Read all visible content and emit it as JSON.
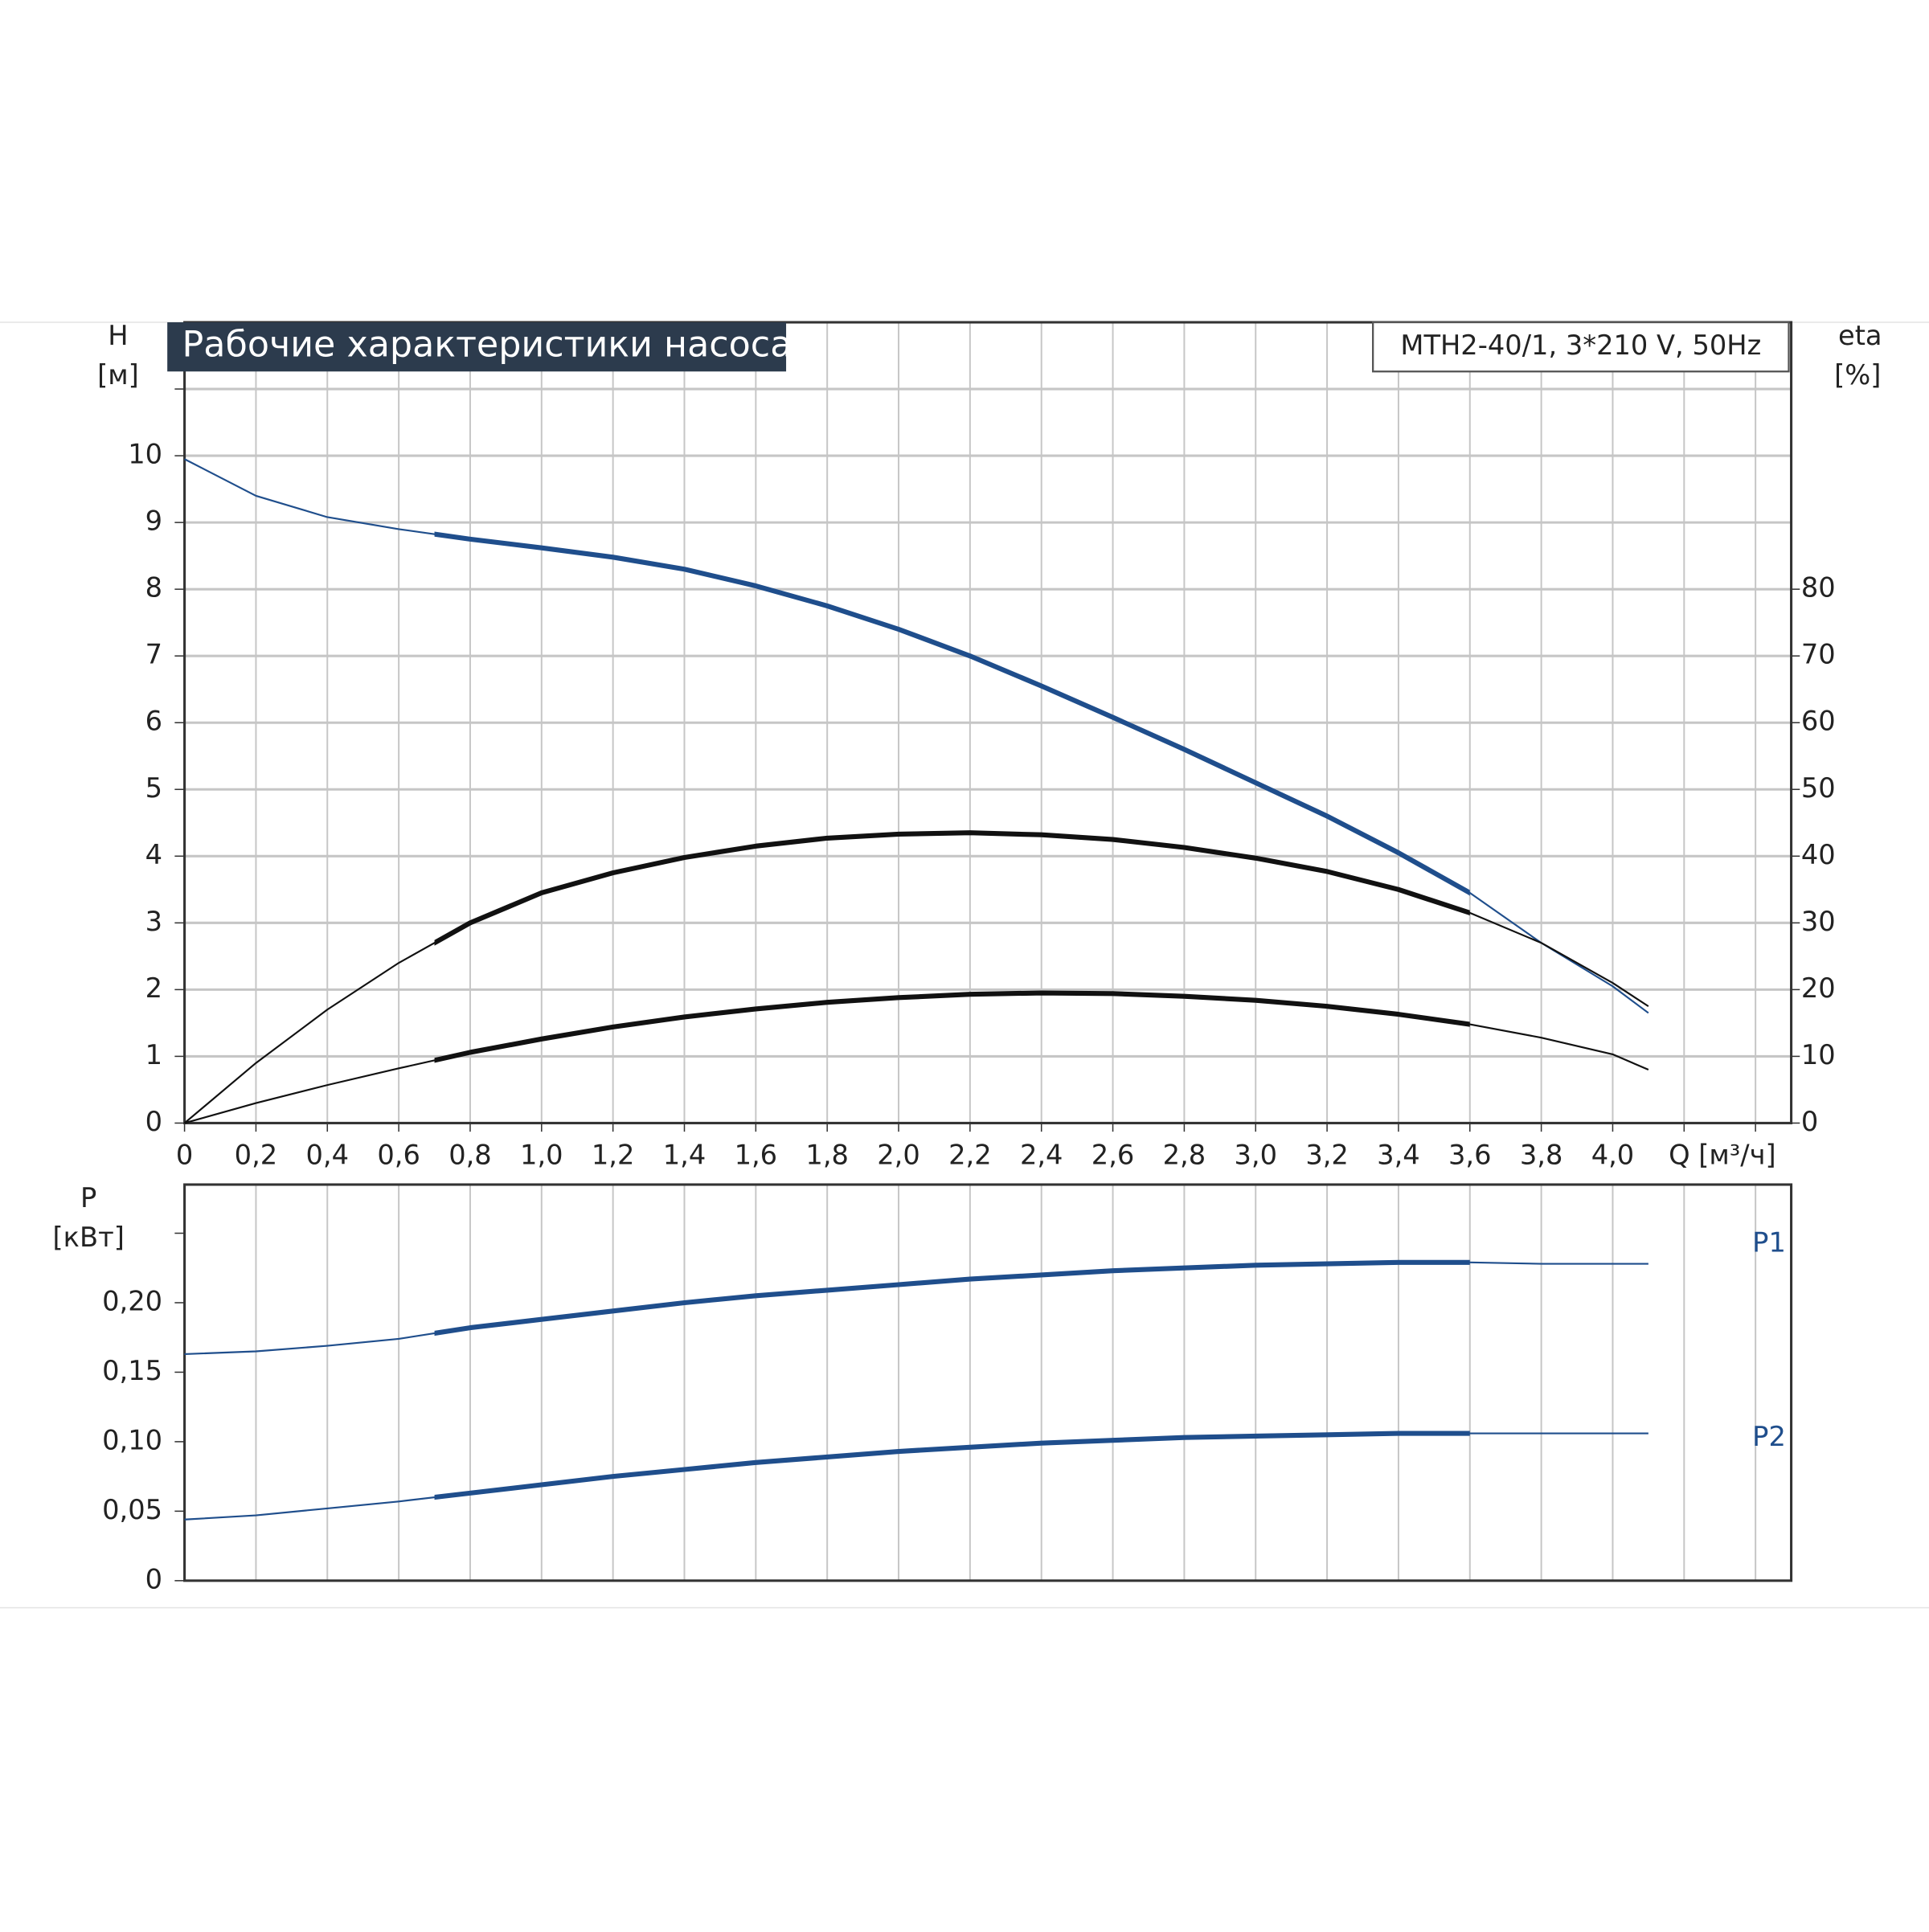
{
  "chart_data": [
    {
      "type": "line",
      "title": "Рабочие характеристики насоса",
      "model": "MTH2-40/1, 3*210 V, 50Hz",
      "ylabel": "H",
      "yunit": "[м]",
      "y2label": "eta",
      "y2unit": "[%]",
      "xlabel": "Q [м³/ч]",
      "x": [
        0,
        0.2,
        0.4,
        0.6,
        0.8,
        1.0,
        1.2,
        1.4,
        1.6,
        1.8,
        2.0,
        2.2,
        2.4,
        2.6,
        2.8,
        3.0,
        3.2,
        3.4,
        3.6,
        3.8,
        4.0,
        4.1
      ],
      "xlim": [
        0,
        4.5
      ],
      "xticks": [
        0,
        {
          "value": 0.2,
          "label": "0,2"
        },
        {
          "value": 0.4,
          "label": "0,4"
        },
        {
          "value": 0.6,
          "label": "0,6"
        },
        {
          "value": 0.8,
          "label": "0,8"
        },
        {
          "value": 1.0,
          "label": "1,0"
        },
        {
          "value": 1.2,
          "label": "1,2"
        },
        {
          "value": 1.4,
          "label": "1,4"
        },
        {
          "value": 1.6,
          "label": "1,6"
        },
        {
          "value": 1.8,
          "label": "1,8"
        },
        {
          "value": 2.0,
          "label": "2,0"
        },
        {
          "value": 2.2,
          "label": "2,2"
        },
        {
          "value": 2.4,
          "label": "2,4"
        },
        {
          "value": 2.6,
          "label": "2,6"
        },
        {
          "value": 2.8,
          "label": "2,8"
        },
        {
          "value": 3.0,
          "label": "3,0"
        },
        {
          "value": 3.2,
          "label": "3,2"
        },
        {
          "value": 3.4,
          "label": "3,4"
        },
        {
          "value": 3.6,
          "label": "3,6"
        },
        {
          "value": 3.8,
          "label": "3,8"
        },
        {
          "value": 4.0,
          "label": "4,0"
        }
      ],
      "xminor": [
        4.2,
        4.4
      ],
      "ylim": [
        0,
        12
      ],
      "yticks": [
        0,
        1,
        2,
        3,
        4,
        5,
        6,
        7,
        8,
        9,
        10
      ],
      "yminor": [
        11
      ],
      "y2lim": [
        0,
        120
      ],
      "y2ticks": [
        0,
        10,
        20,
        30,
        40,
        50,
        60,
        70,
        80
      ],
      "grid": true,
      "highlight_x": [
        0.7,
        3.6
      ],
      "series": [
        {
          "color": "#1f4e8c",
          "values": [
            9.95,
            9.4,
            9.08,
            8.9,
            8.75,
            8.62,
            8.48,
            8.3,
            8.05,
            7.75,
            7.4,
            7.0,
            6.55,
            6.08,
            5.6,
            5.1,
            4.6,
            4.05,
            3.45,
            2.7,
            2.05,
            1.65
          ]
        },
        {
          "color": "#111111",
          "axis": "y2",
          "values": [
            0,
            9,
            17,
            24,
            30,
            34.5,
            37.5,
            39.8,
            41.5,
            42.7,
            43.3,
            43.5,
            43.2,
            42.5,
            41.3,
            39.7,
            37.7,
            35,
            31.5,
            27,
            21,
            17.5
          ]
        },
        {
          "color": "#111111",
          "axis": "y2",
          "values": [
            0,
            3,
            5.7,
            8.2,
            10.6,
            12.6,
            14.4,
            15.9,
            17.1,
            18.1,
            18.8,
            19.3,
            19.5,
            19.4,
            19.0,
            18.4,
            17.5,
            16.3,
            14.8,
            12.8,
            10.3,
            8.0
          ]
        }
      ]
    },
    {
      "type": "line",
      "ylabel": "P",
      "yunit": "[кВт]",
      "x": [
        0,
        0.2,
        0.4,
        0.6,
        0.8,
        1.0,
        1.2,
        1.4,
        1.6,
        1.8,
        2.0,
        2.2,
        2.4,
        2.6,
        2.8,
        3.0,
        3.2,
        3.4,
        3.6,
        3.8,
        4.0,
        4.1
      ],
      "xlim": [
        0,
        4.5
      ],
      "ylim": [
        0,
        0.285
      ],
      "yticks": [
        0,
        {
          "value": 0.05,
          "label": "0,05"
        },
        {
          "value": 0.1,
          "label": "0,10"
        },
        {
          "value": 0.15,
          "label": "0,15"
        },
        {
          "value": 0.2,
          "label": "0,20"
        }
      ],
      "yminor": [
        0.25
      ],
      "highlight_x": [
        0.7,
        3.6
      ],
      "series": [
        {
          "name": "P1",
          "color": "#1f4e8c",
          "values": [
            0.163,
            0.165,
            0.169,
            0.174,
            0.182,
            0.188,
            0.194,
            0.2,
            0.205,
            0.209,
            0.213,
            0.217,
            0.22,
            0.223,
            0.225,
            0.227,
            0.228,
            0.229,
            0.229,
            0.228,
            0.228,
            0.228
          ]
        },
        {
          "name": "P2",
          "color": "#1f4e8c",
          "values": [
            0.044,
            0.047,
            0.052,
            0.057,
            0.063,
            0.069,
            0.075,
            0.08,
            0.085,
            0.089,
            0.093,
            0.096,
            0.099,
            0.101,
            0.103,
            0.104,
            0.105,
            0.106,
            0.106,
            0.106,
            0.106,
            0.106
          ]
        }
      ]
    }
  ]
}
